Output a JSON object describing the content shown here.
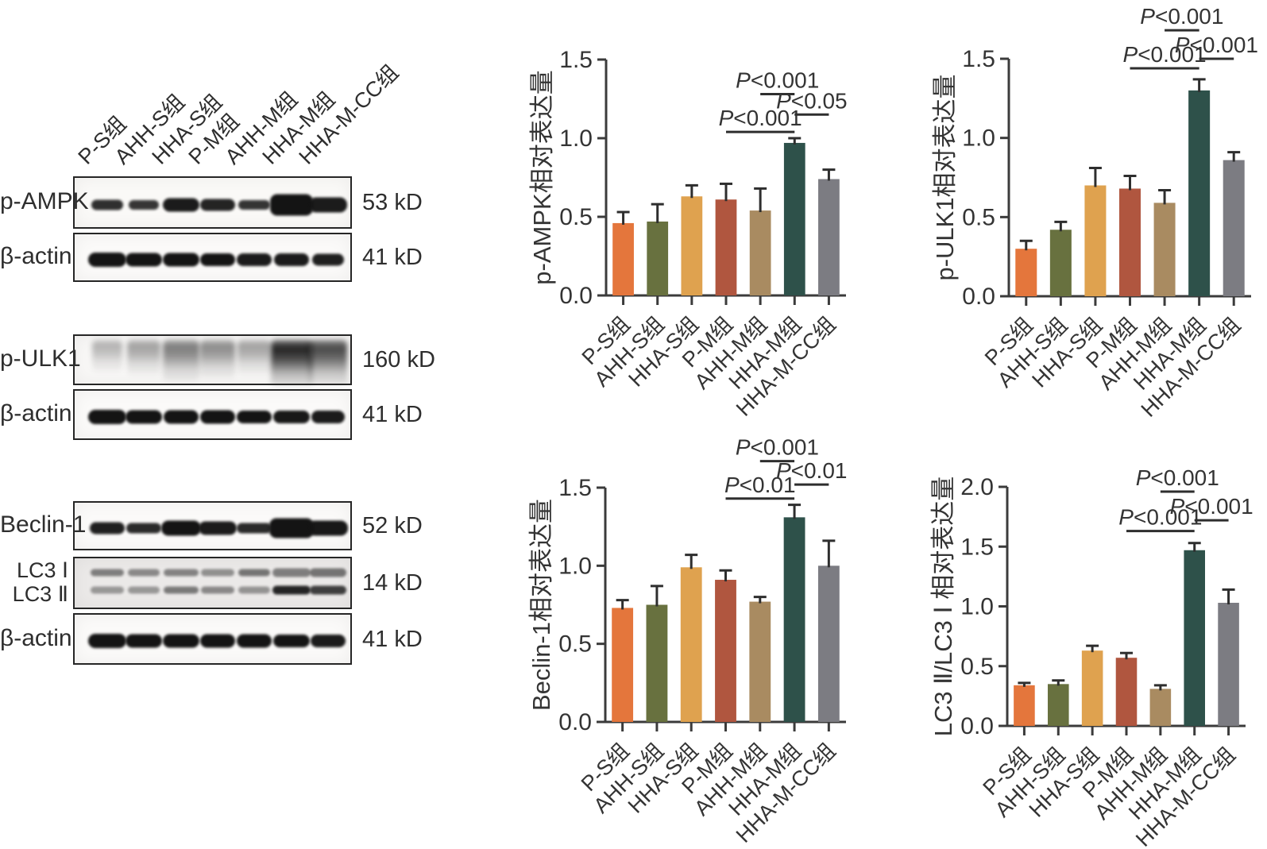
{
  "figure": {
    "background": "#ffffff",
    "axis_color": "#3b3b3b",
    "errorbar_color": "#2e2e2e",
    "text_color": "#343434"
  },
  "blots": {
    "lane_labels": [
      "P-S组",
      "AHH-S组",
      "HHA-S组",
      "P-M组",
      "AHH-M组",
      "HHA-M组",
      "HHA-M-CC组"
    ],
    "panels": [
      {
        "name": "ampk-panel",
        "rows": [
          {
            "label_lines": [
              "p-AMPK"
            ],
            "mw": "53 kD",
            "style": "sharp",
            "bg": "#FAF9F7",
            "band_intensity": [
              0.88,
              0.85,
              0.97,
              0.93,
              0.86,
              1,
              0.97
            ],
            "band_height": [
              13,
              12,
              17,
              15,
              12,
              27,
              19
            ],
            "band_width": [
              40,
              38,
              46,
              44,
              40,
              54,
              48
            ]
          },
          {
            "label_lines": [
              "β-actin"
            ],
            "mw": "41 kD",
            "style": "sharp",
            "bg": "#FBFAF9",
            "band_intensity": [
              1,
              1,
              1,
              1,
              0.97,
              0.97,
              0.95
            ],
            "band_height": [
              18,
              17,
              17,
              16,
              16,
              16,
              15
            ],
            "band_width": [
              48,
              46,
              46,
              44,
              44,
              44,
              40
            ]
          }
        ]
      },
      {
        "name": "ulk1-panel",
        "rows": [
          {
            "label_lines": [
              "p-ULK1"
            ],
            "mw": "160 kD",
            "style": "smear",
            "bg": "#F8F7F6",
            "band_intensity": [
              0.3,
              0.38,
              0.55,
              0.48,
              0.38,
              0.95,
              0.78
            ],
            "band_height": [
              40,
              44,
              52,
              48,
              44,
              60,
              58
            ],
            "band_width": [
              38,
              42,
              46,
              44,
              42,
              52,
              48
            ]
          },
          {
            "label_lines": [
              "β-actin"
            ],
            "mw": "41 kD",
            "style": "sharp",
            "bg": "#FBFAF9",
            "band_intensity": [
              1,
              1,
              1,
              1,
              1,
              0.98,
              0.97
            ],
            "band_height": [
              18,
              17,
              17,
              17,
              16,
              16,
              16
            ],
            "band_width": [
              48,
              46,
              44,
              44,
              44,
              46,
              42
            ]
          }
        ]
      },
      {
        "name": "beclin-lc3-panel",
        "rows": [
          {
            "label_lines": [
              "Beclin-1"
            ],
            "mw": "52 kD",
            "style": "sharp",
            "bg": "#FBFAF9",
            "band_intensity": [
              0.95,
              0.9,
              1,
              0.97,
              0.9,
              1,
              0.98
            ],
            "band_height": [
              15,
              13,
              19,
              17,
              13,
              25,
              19
            ],
            "band_width": [
              44,
              44,
              50,
              48,
              44,
              56,
              50
            ]
          },
          {
            "label_lines": [
              "LC3 Ⅰ",
              "LC3 Ⅱ"
            ],
            "mw": "14 kD",
            "style": "double",
            "bg": "#EBE9E8",
            "band_intensity": [
              0.5,
              0.45,
              0.48,
              0.42,
              0.55,
              0.5,
              0.55
            ],
            "band_intensity2": [
              0.38,
              0.38,
              0.52,
              0.45,
              0.4,
              0.92,
              0.8
            ],
            "band_height": [
              9,
              9,
              9,
              9,
              9,
              11,
              11
            ],
            "band_width": [
              42,
              40,
              44,
              42,
              40,
              48,
              46
            ]
          },
          {
            "label_lines": [
              "β-actin"
            ],
            "mw": "41 kD",
            "style": "sharp",
            "bg": "#FBFAF9",
            "band_intensity": [
              1,
              1,
              1,
              1,
              1,
              1,
              0.97
            ],
            "band_height": [
              18,
              17,
              17,
              17,
              17,
              16,
              16
            ],
            "band_width": [
              48,
              46,
              46,
              44,
              44,
              46,
              44
            ]
          }
        ]
      }
    ]
  },
  "chart_data": {
    "type": "bar",
    "categories": [
      "P-S组",
      "AHH-S组",
      "HHA-S组",
      "P-M组",
      "AHH-M组",
      "HHA-M组",
      "HHA-M-CC组"
    ],
    "bar_colors": [
      "#E4763C",
      "#68713F",
      "#DFA24F",
      "#B0563F",
      "#A98B61",
      "#2E514A",
      "#7C7C82"
    ],
    "legend": "none",
    "grid": "off",
    "charts": [
      {
        "id": "p-ampk",
        "ylabel": "p-AMPK相对表达量",
        "ylim": [
          0,
          1.5
        ],
        "tick_labels": [
          "0.0",
          "0.5",
          "1.0",
          "1.5"
        ],
        "values": [
          0.46,
          0.47,
          0.63,
          0.61,
          0.54,
          0.97,
          0.74
        ],
        "errors": [
          0.07,
          0.11,
          0.07,
          0.1,
          0.14,
          0.03,
          0.06
        ],
        "annotations": [
          {
            "text": "P<0.001",
            "from": "AHH-M组",
            "to": "HHA-M组",
            "line_y": 1.28
          },
          {
            "text": "P<0.001",
            "from": "P-M组",
            "to": "HHA-M组",
            "line_y": 1.04
          },
          {
            "text": "P<0.05",
            "from": "HHA-M组",
            "to": "HHA-M-CC组",
            "line_y": 1.15
          }
        ]
      },
      {
        "id": "p-ulk1",
        "ylabel": "p-ULK1相对表达量",
        "ylim": [
          0,
          1.5
        ],
        "tick_labels": [
          "0.0",
          "0.5",
          "1.0",
          "1.5"
        ],
        "values": [
          0.3,
          0.42,
          0.7,
          0.68,
          0.59,
          1.3,
          0.86
        ],
        "errors": [
          0.05,
          0.05,
          0.11,
          0.08,
          0.08,
          0.07,
          0.05
        ],
        "annotations": [
          {
            "text": "P<0.001",
            "from": "AHH-M组",
            "to": "HHA-M组",
            "line_y": 1.68
          },
          {
            "text": "P<0.001",
            "from": "P-M组",
            "to": "HHA-M组",
            "line_y": 1.44
          },
          {
            "text": "P<0.001",
            "from": "HHA-M组",
            "to": "HHA-M-CC组",
            "line_y": 1.5
          }
        ]
      },
      {
        "id": "beclin-1",
        "ylabel": "Beclin-1相对表达量",
        "ylim": [
          0,
          1.5
        ],
        "tick_labels": [
          "0.0",
          "0.5",
          "1.0",
          "1.5"
        ],
        "values": [
          0.73,
          0.75,
          0.99,
          0.91,
          0.77,
          1.31,
          1.0
        ],
        "errors": [
          0.05,
          0.12,
          0.08,
          0.06,
          0.03,
          0.08,
          0.16
        ],
        "annotations": [
          {
            "text": "P<0.001",
            "from": "AHH-M组",
            "to": "HHA-M组",
            "line_y": 1.67
          },
          {
            "text": "P<0.01",
            "from": "P-M组",
            "to": "HHA-M组",
            "line_y": 1.43
          },
          {
            "text": "P<0.01",
            "from": "HHA-M组",
            "to": "HHA-M-CC组",
            "line_y": 1.52
          }
        ]
      },
      {
        "id": "lc3",
        "ylabel": "LC3 Ⅱ/LC3 Ⅰ 相对表达量",
        "ylim": [
          0,
          2.0
        ],
        "tick_labels": [
          "0.0",
          "0.5",
          "1.0",
          "1.5",
          "2.0"
        ],
        "values": [
          0.34,
          0.35,
          0.63,
          0.57,
          0.31,
          1.47,
          1.03
        ],
        "errors": [
          0.02,
          0.03,
          0.04,
          0.04,
          0.03,
          0.06,
          0.11
        ],
        "annotations": [
          {
            "text": "P<0.001",
            "from": "AHH-M组",
            "to": "HHA-M组",
            "line_y": 1.96
          },
          {
            "text": "P<0.001",
            "from": "P-M组",
            "to": "HHA-M组",
            "line_y": 1.63
          },
          {
            "text": "P<0.001",
            "from": "HHA-M组",
            "to": "HHA-M-CC组",
            "line_y": 1.72
          }
        ]
      }
    ]
  }
}
